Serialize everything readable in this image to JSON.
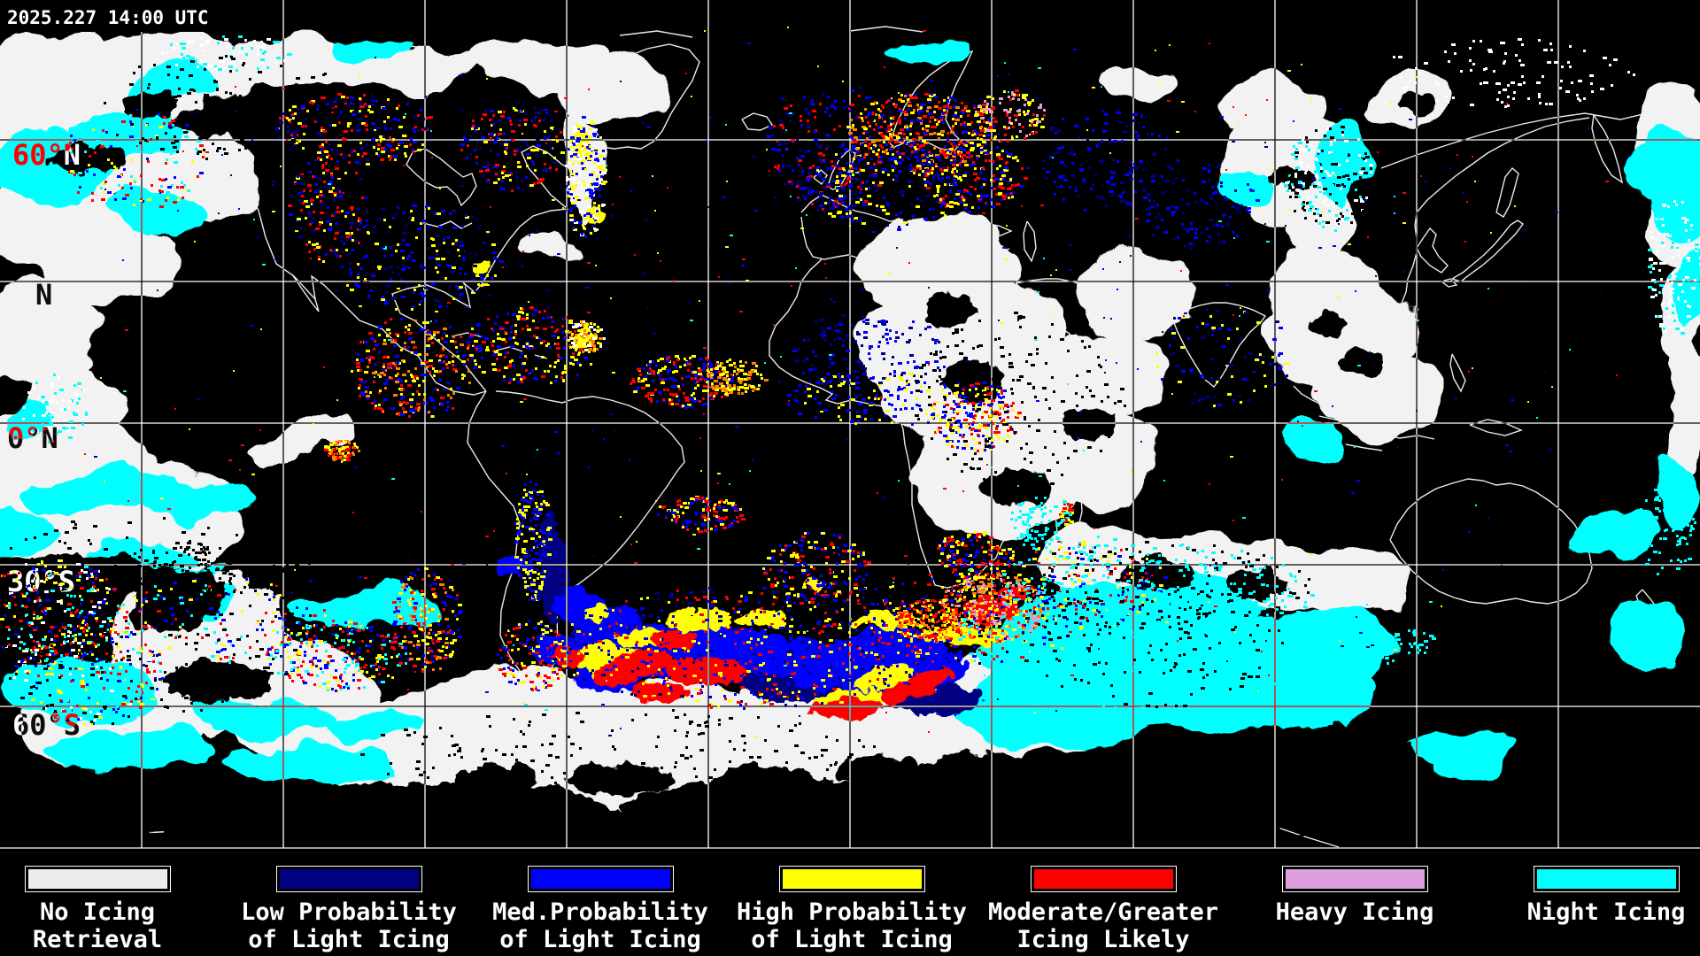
{
  "header": {
    "timestamp": "2025.227 14:00 UTC"
  },
  "map": {
    "latitude_labels": [
      {
        "id": "60n",
        "text": "60°N"
      },
      {
        "id": "30n",
        "text": "N"
      },
      {
        "id": "0n",
        "text": "0°N"
      },
      {
        "id": "30s",
        "text": "30°S"
      },
      {
        "id": "60s",
        "text": "60°S"
      }
    ],
    "colors": {
      "background": "#000000",
      "coastline": "#ffffff",
      "grid": "#ffffff",
      "cloud_white": "#f2f2f2",
      "night_cyan": "#00ffff"
    }
  },
  "legend": {
    "items": [
      {
        "name": "no-icing-retrieval",
        "color": "#ececec",
        "line1": "No Icing",
        "line2": "Retrieval"
      },
      {
        "name": "low-prob-light-icing",
        "color": "#000080",
        "line1": "Low Probability",
        "line2": "of Light Icing"
      },
      {
        "name": "med-prob-light-icing",
        "color": "#0000ff",
        "line1": "Med.Probability",
        "line2": "of Light Icing"
      },
      {
        "name": "high-prob-light-icing",
        "color": "#ffff00",
        "line1": "High Probability",
        "line2": "of Light Icing"
      },
      {
        "name": "moderate-greater-icing",
        "color": "#ff0000",
        "line1": "Moderate/Greater",
        "line2": "Icing Likely"
      },
      {
        "name": "heavy-icing",
        "color": "#dda0dd",
        "line1": "Heavy Icing",
        "line2": ""
      },
      {
        "name": "night-icing",
        "color": "#00ffff",
        "line1": "Night Icing",
        "line2": ""
      }
    ]
  }
}
